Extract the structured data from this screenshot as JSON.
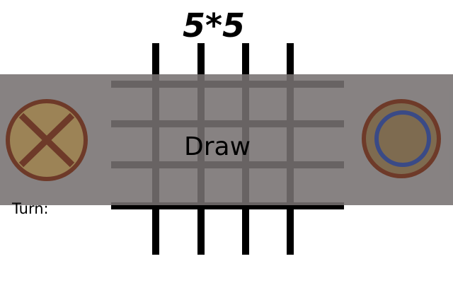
{
  "game": {
    "title": "5*5",
    "result": "Draw",
    "turn_label": "Turn:"
  },
  "players": [
    {
      "id": "player-x",
      "mark": "x-mark-icon",
      "color": "#6e3a29"
    },
    {
      "id": "player-o",
      "mark": "o-ring-icon",
      "color": "#3a4a86"
    }
  ],
  "colors": {
    "overlay": "#767171",
    "grid_lines": "#000000",
    "x_token_fill": "#9c8356",
    "o_token_fill": "#7e6b50",
    "token_border": "#6e3a29",
    "o_ring": "#3a4a86"
  }
}
